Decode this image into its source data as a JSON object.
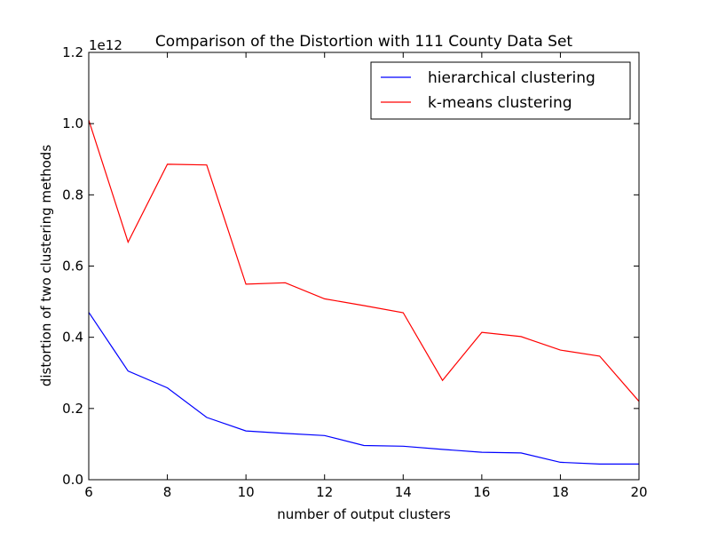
{
  "chart_data": {
    "type": "line",
    "title": "Comparison of the Distortion with 111 County Data Set",
    "xlabel": "number of output clusters",
    "ylabel": "distortion of two clustering methods",
    "offset_label": "1e12",
    "xlim": [
      6,
      20
    ],
    "ylim": [
      0,
      1.2
    ],
    "x_ticks": [
      6,
      8,
      10,
      12,
      14,
      16,
      18,
      20
    ],
    "x_tick_labels": [
      "6",
      "8",
      "10",
      "12",
      "14",
      "16",
      "18",
      "20"
    ],
    "y_ticks": [
      0,
      0.2,
      0.4,
      0.6,
      0.8,
      1.0,
      1.2
    ],
    "y_tick_labels": [
      "0.0",
      "0.2",
      "0.4",
      "0.6",
      "0.8",
      "1.0",
      "1.2"
    ],
    "grid": false,
    "legend_position": "top-right",
    "x": [
      6,
      7,
      8,
      9,
      10,
      11,
      12,
      13,
      14,
      15,
      16,
      17,
      18,
      19,
      20
    ],
    "series": [
      {
        "name": "hierarchical clustering",
        "color": "#0000ff",
        "values": [
          0.47,
          0.305,
          0.258,
          0.175,
          0.137,
          0.13,
          0.124,
          0.096,
          0.094,
          0.085,
          0.077,
          0.075,
          0.049,
          0.044,
          0.044
        ]
      },
      {
        "name": "k-means clustering",
        "color": "#ff0000",
        "values": [
          1.01,
          0.667,
          0.886,
          0.884,
          0.549,
          0.553,
          0.508,
          0.489,
          0.469,
          0.279,
          0.414,
          0.402,
          0.364,
          0.347,
          0.22
        ]
      }
    ]
  }
}
